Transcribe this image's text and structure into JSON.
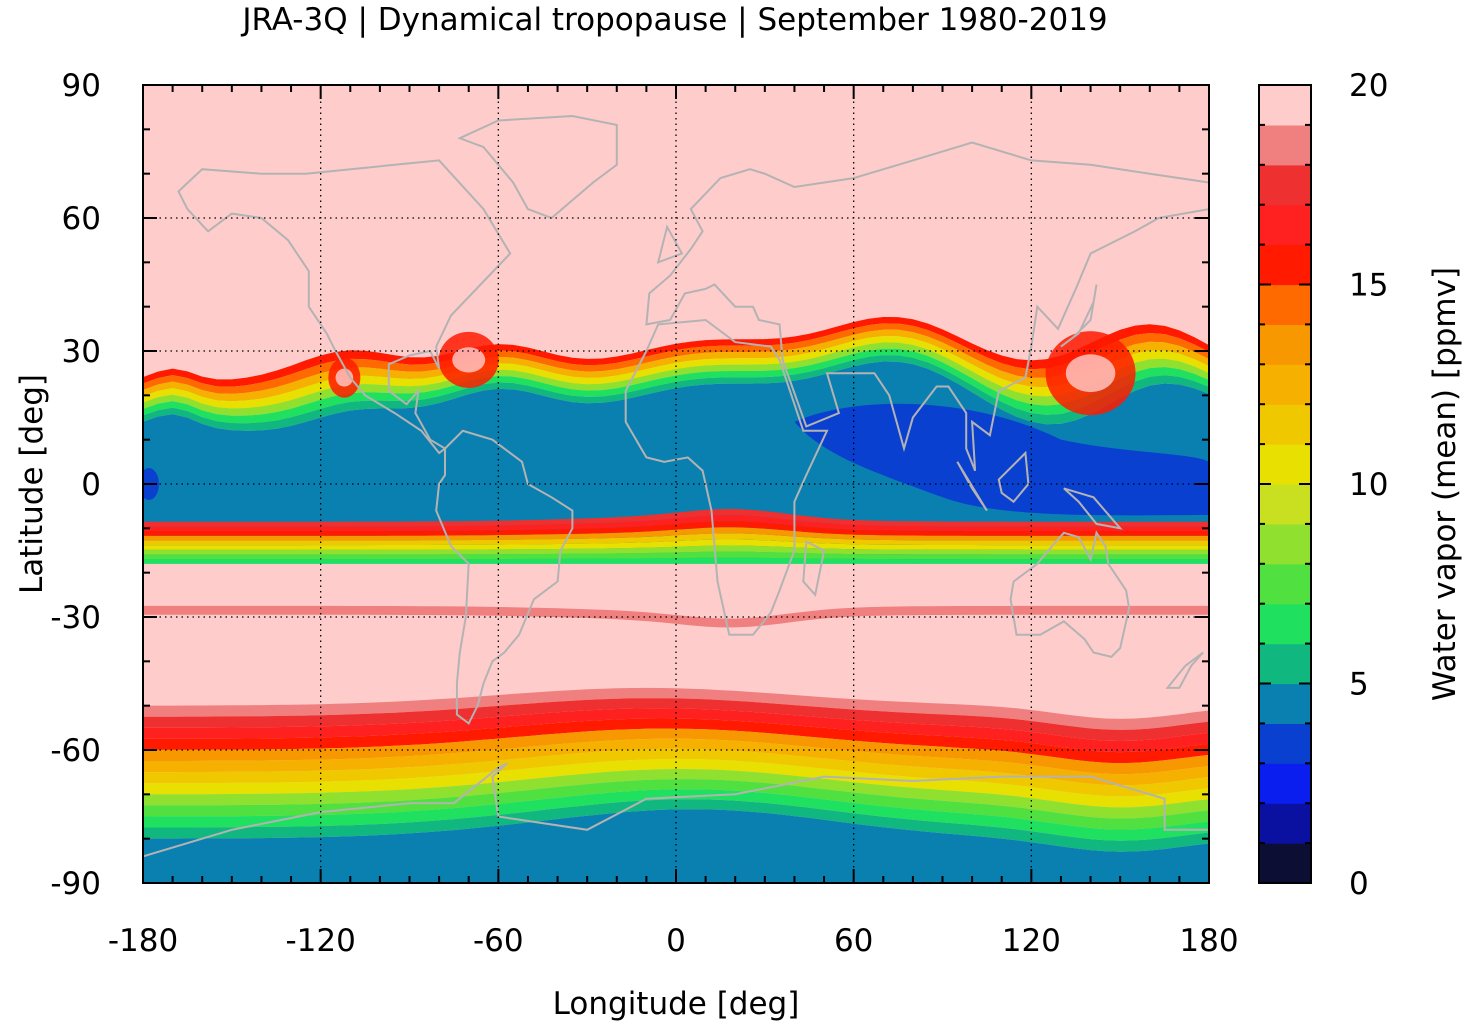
{
  "title": "JRA-3Q | Dynamical tropopause | September 1980-2019",
  "map": {
    "xlabel": "Longitude [deg]",
    "ylabel": "Latitude [deg]",
    "xlim": [
      -180,
      180
    ],
    "ylim": [
      -90,
      90
    ],
    "xticks": [
      "-180",
      "-120",
      "-60",
      "0",
      "60",
      "120",
      "180"
    ],
    "yticks": [
      "90",
      "60",
      "30",
      "0",
      "-30",
      "-60",
      "-90"
    ],
    "grid": "dotted",
    "coastline_color": "#b3b3b3"
  },
  "colorbar": {
    "label": "Water vapor (mean) [ppmv]",
    "range": [
      0,
      20
    ],
    "ticks": [
      "20",
      "15",
      "10",
      "5",
      "0"
    ],
    "levels_bottom_to_top": [
      "#0c0f33",
      "#0a10a0",
      "#0a1ef0",
      "#0a40d0",
      "#0a80b0",
      "#10b880",
      "#20e060",
      "#50e040",
      "#90e030",
      "#c8e020",
      "#e8e000",
      "#f0c800",
      "#f5b000",
      "#f89800",
      "#ff6a00",
      "#ff1a00",
      "#ff2020",
      "#ef3030",
      "#f08080",
      "#ffcccc"
    ]
  }
}
